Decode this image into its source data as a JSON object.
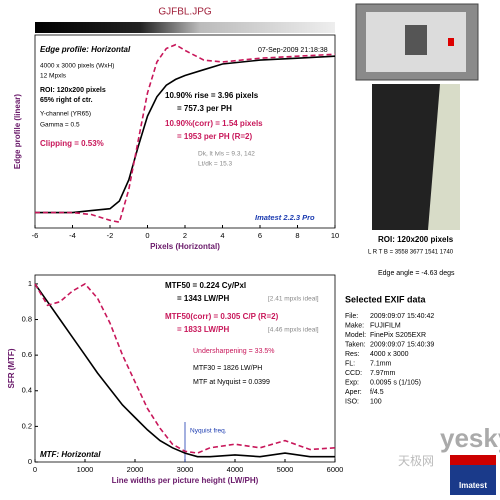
{
  "chart_data": [
    {
      "type": "line",
      "title": "GJFBL.JPG",
      "x_label": "Pixels (Horizontal)",
      "y_label": "Edge profile (linear)",
      "xlim": [
        -6,
        10
      ],
      "xticks": [
        -6,
        -4,
        -2,
        0,
        2,
        4,
        6,
        8,
        10
      ],
      "ylim": [
        0,
        1
      ],
      "x": [
        -6,
        -4,
        -3,
        -2,
        -1.5,
        -1,
        -0.5,
        0,
        0.5,
        1,
        1.5,
        2,
        3,
        4,
        6,
        8,
        10
      ],
      "series": [
        {
          "color": "#000000",
          "style": "solid",
          "values": [
            0.08,
            0.08,
            0.09,
            0.1,
            0.14,
            0.25,
            0.42,
            0.58,
            0.68,
            0.74,
            0.77,
            0.79,
            0.82,
            0.85,
            0.87,
            0.88,
            0.89
          ]
        },
        {
          "color": "#c8175a",
          "style": "dashed",
          "values": [
            0.08,
            0.08,
            0.07,
            0.04,
            0.03,
            0.2,
            0.45,
            0.7,
            0.86,
            0.93,
            0.95,
            0.92,
            0.87,
            0.86,
            0.88,
            0.89,
            0.9
          ]
        }
      ],
      "annotations": [
        "Edge profile: Horizontal",
        "07-Sep-2009 21:18:38",
        "4000 x 3000 pixels (WxH)",
        "12 Mpxls",
        "ROI: 120x200 pixels",
        "65% right of ctr.",
        "Y-channel (YR65)",
        "Gamma = 0.5",
        "Clipping = 0.53%",
        "10.90% rise = 3.96 pixels",
        "= 757.3 per PH",
        "10.90%(corr) = 1.54 pixels",
        "= 1953 per PH (R=2)",
        "Dk, lt lvls = 9.3, 142",
        "Lt/dk = 15.3",
        "Imatest 2.2.3 Pro"
      ]
    },
    {
      "type": "line",
      "x_label": "Line widths per picture height (LW/PH)",
      "y_label": "SFR (MTF)",
      "xlim": [
        0,
        6000
      ],
      "xticks": [
        0,
        1000,
        2000,
        3000,
        4000,
        5000,
        6000
      ],
      "ylim": [
        0,
        1.05
      ],
      "yticks": [
        0,
        0.2,
        0.4,
        0.6,
        0.8,
        1
      ],
      "x": [
        0,
        250,
        500,
        750,
        1000,
        1250,
        1500,
        1750,
        2000,
        2250,
        2500,
        2750,
        3000,
        3250,
        3500,
        4000,
        4500,
        5000,
        5500,
        6000
      ],
      "series": [
        {
          "color": "#000000",
          "style": "solid",
          "values": [
            1,
            0.9,
            0.8,
            0.7,
            0.6,
            0.5,
            0.41,
            0.32,
            0.25,
            0.18,
            0.12,
            0.08,
            0.05,
            0.03,
            0.03,
            0.04,
            0.03,
            0.05,
            0.03,
            0.03
          ]
        },
        {
          "color": "#c8175a",
          "style": "dashed",
          "values": [
            1,
            0.88,
            0.9,
            0.96,
            1,
            0.92,
            0.78,
            0.6,
            0.45,
            0.3,
            0.19,
            0.1,
            0.06,
            0.05,
            0.08,
            0.1,
            0.08,
            0.12,
            0.07,
            0.08
          ]
        }
      ],
      "nyquist": 3000,
      "annotations": [
        "MTF50 = 0.224 Cy/Pxl",
        "= 1343 LW/PH",
        "[2.41 mpxls ideal]",
        "MTF50(corr) = 0.305 C/P (R=2)",
        "= 1833 LW/PH",
        "[4.46 mpxls ideal]",
        "Undersharpening = 33.5%",
        "MTF30 = 1826 LW/PH",
        "MTF at Nyquist = 0.0399",
        "Nyquist freq.",
        "MTF: Horizontal"
      ]
    }
  ],
  "roi_panel": {
    "roi": "ROI: 120x200 pixels",
    "lrtb": "L R T B = 3558 3677 1541 1740",
    "edge_angle": "Edge angle = -4.63 degs"
  },
  "exif": {
    "title": "Selected EXIF data",
    "rows": [
      [
        "File:",
        "2009:09:07 15:40:42"
      ],
      [
        "Make:",
        "FUJIFILM"
      ],
      [
        "Model:",
        "FinePix S205EXR"
      ],
      [
        "Taken:",
        "2009:09:07 15:40:39"
      ],
      [
        "Res:",
        "4000 x 3000"
      ],
      [
        "FL:",
        "7.1mm"
      ],
      [
        "CCD:",
        "7.97mm"
      ],
      [
        "Exp:",
        "0.0095 s (1/105)"
      ],
      [
        "Aper:",
        "f/4.5"
      ],
      [
        "ISO:",
        "100"
      ]
    ]
  },
  "watermark": {
    "site": "yesky",
    "site_cn": "天极网",
    "logo": "Imatest"
  }
}
